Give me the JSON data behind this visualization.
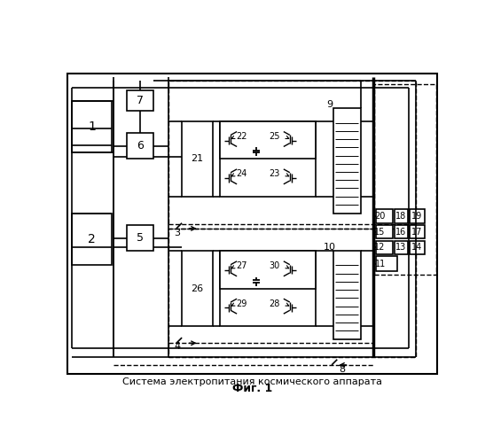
{
  "title": "Система электропитания космического аппарата",
  "subtitle": "Фиг. 1"
}
